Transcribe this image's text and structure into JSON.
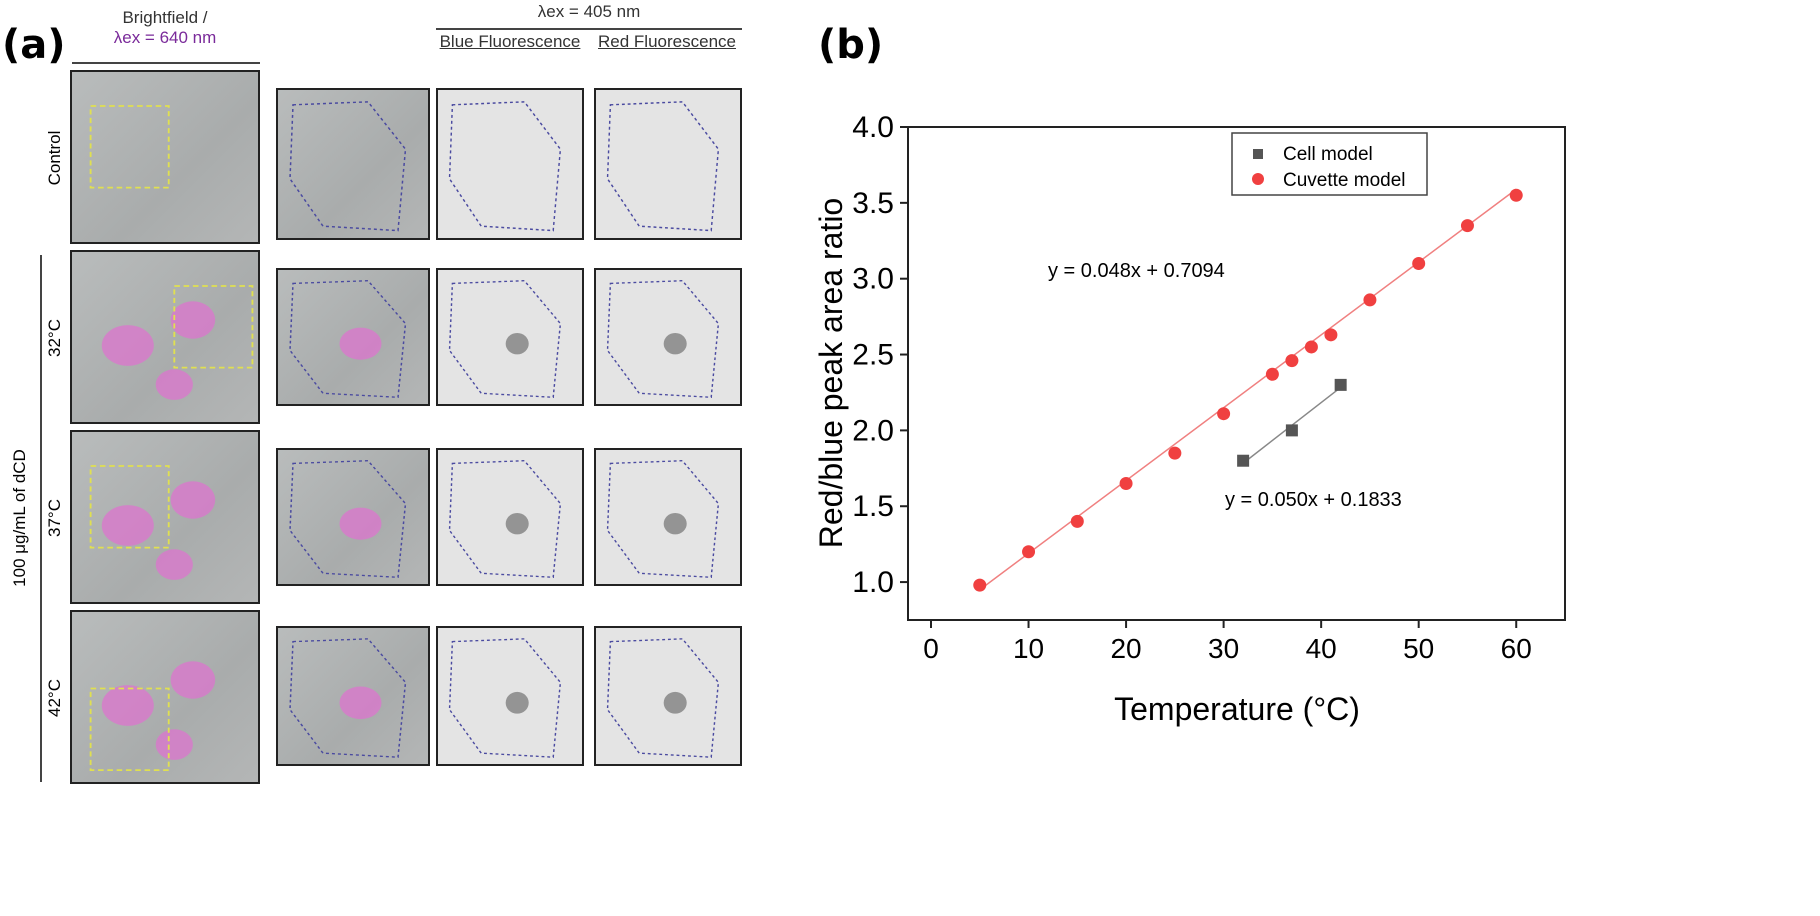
{
  "panel_a": {
    "label": "(a)",
    "col1_header_line1": "Brightfield /",
    "col1_header_line2": "λex = 640 nm",
    "excitation_header": "λex = 405 nm",
    "col3_header": "Blue Fluorescence",
    "col4_header": "Red Fluorescence",
    "rows": [
      {
        "label": "Control"
      },
      {
        "label": "32°C"
      },
      {
        "label": "37°C"
      },
      {
        "label": "42°C"
      }
    ],
    "group_label": "100 μg/mL of dCD",
    "colors": {
      "brightfield_overlay": "#e070d0",
      "roi_box": "#e0e050",
      "cell_outline": "#4a4aa0"
    }
  },
  "panel_b": {
    "label": "(b)"
  },
  "chart_data": {
    "type": "scatter",
    "xlabel": "Temperature (°C)",
    "ylabel": "Red/blue peak area ratio",
    "xlim": [
      0,
      65
    ],
    "ylim": [
      0.75,
      4.0
    ],
    "xticks": [
      0,
      10,
      20,
      30,
      40,
      50,
      60
    ],
    "yticks": [
      1.0,
      1.5,
      2.0,
      2.5,
      3.0,
      3.5,
      4.0
    ],
    "legend_position": "top-right",
    "grid": false,
    "series": [
      {
        "name": "Cell model",
        "marker": "square",
        "color": "#555555",
        "x": [
          32,
          37,
          42
        ],
        "y": [
          1.8,
          2.0,
          2.3
        ],
        "fit_label": "y = 0.050x + 0.1833",
        "fit": {
          "slope": 0.05,
          "intercept": 0.1833
        }
      },
      {
        "name": "Cuvette model",
        "marker": "circle",
        "color": "#f04040",
        "x": [
          5,
          10,
          15,
          20,
          25,
          30,
          35,
          37,
          39,
          41,
          45,
          50,
          55,
          60
        ],
        "y": [
          0.98,
          1.2,
          1.4,
          1.65,
          1.85,
          2.11,
          2.37,
          2.46,
          2.55,
          2.63,
          2.86,
          3.1,
          3.35,
          3.55
        ],
        "fit_label": "y = 0.048x + 0.7094",
        "fit": {
          "slope": 0.048,
          "intercept": 0.7094
        }
      }
    ]
  }
}
